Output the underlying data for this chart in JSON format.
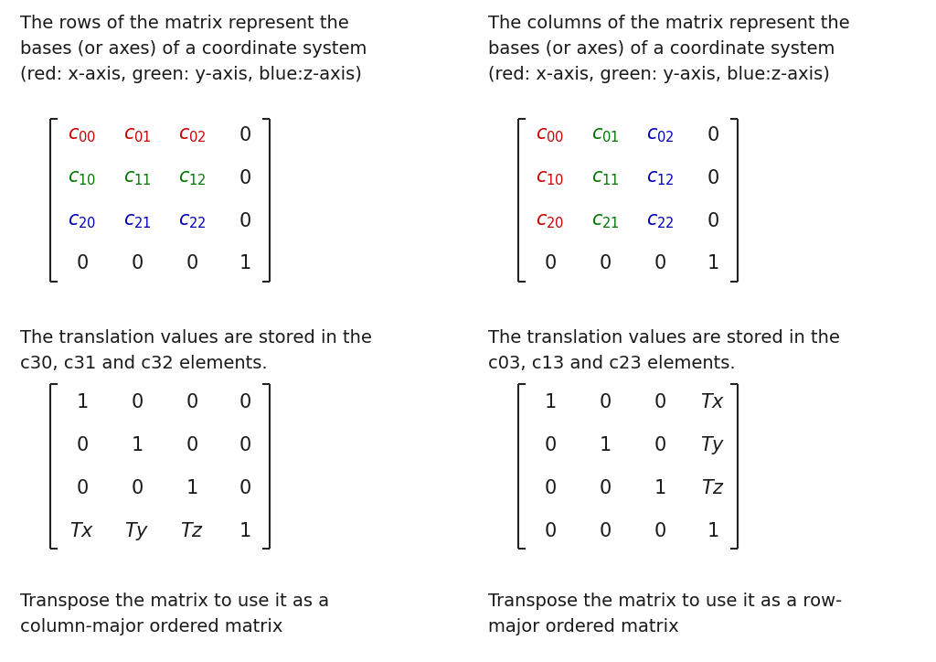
{
  "bg_color": "#ffffff",
  "text_color": "#1a1a1a",
  "red": "#cc0000",
  "green": "#007700",
  "blue": "#0000bb",
  "black": "#1a1a1a",
  "left_desc1": "The rows of the matrix represent the\nbases (or axes) of a coordinate system\n(red: x-axis, green: y-axis, blue:z-axis)",
  "right_desc1": "The columns of the matrix represent the\nbases (or axes) of a coordinate system\n(red: x-axis, green: y-axis, blue:z-axis)",
  "left_desc2": "The translation values are stored in the\nc30, c31 and c32 elements.",
  "right_desc2": "The translation values are stored in the\nc03, c13 and c23 elements.",
  "left_desc3": "Transpose the matrix to use it as a\ncolumn-major ordered matrix",
  "right_desc3": "Transpose the matrix to use it as a row-\nmajor ordered matrix",
  "desc_fontsize": 14.0,
  "mat_fontsize": 15.0,
  "fig_width": 10.24,
  "fig_height": 7.24,
  "dpi": 100
}
